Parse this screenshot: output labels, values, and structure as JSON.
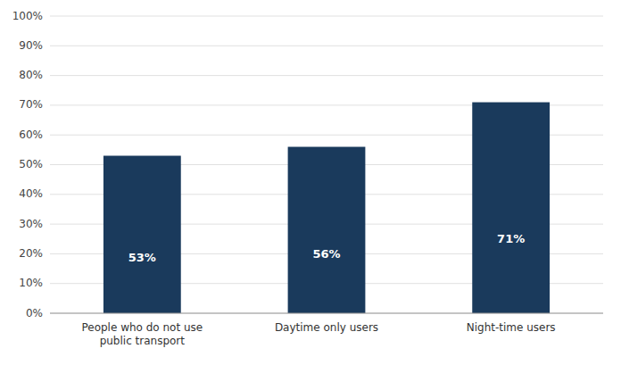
{
  "chart_data": {
    "type": "bar",
    "categories": [
      "People who do not use\npublic transport",
      "Daytime only users",
      "Night-time users"
    ],
    "values": [
      0.53,
      0.56,
      0.71
    ],
    "value_labels": [
      "53%",
      "56%",
      "71%"
    ],
    "data_labels": true,
    "color": "#1a3a5c",
    "ylim": [
      0,
      1.0
    ],
    "yticks": [
      {
        "value": 0.0,
        "label": "0%"
      },
      {
        "value": 0.1,
        "label": "10%"
      },
      {
        "value": 0.2,
        "label": "20%"
      },
      {
        "value": 0.3,
        "label": "30%"
      },
      {
        "value": 0.4,
        "label": "40%"
      },
      {
        "value": 0.5,
        "label": "50%"
      },
      {
        "value": 0.6,
        "label": "60%"
      },
      {
        "value": 0.7,
        "label": "70%"
      },
      {
        "value": 0.8,
        "label": "80%"
      },
      {
        "value": 0.9,
        "label": "90%"
      },
      {
        "value": 1.0,
        "label": "100%"
      }
    ],
    "grid": true
  }
}
